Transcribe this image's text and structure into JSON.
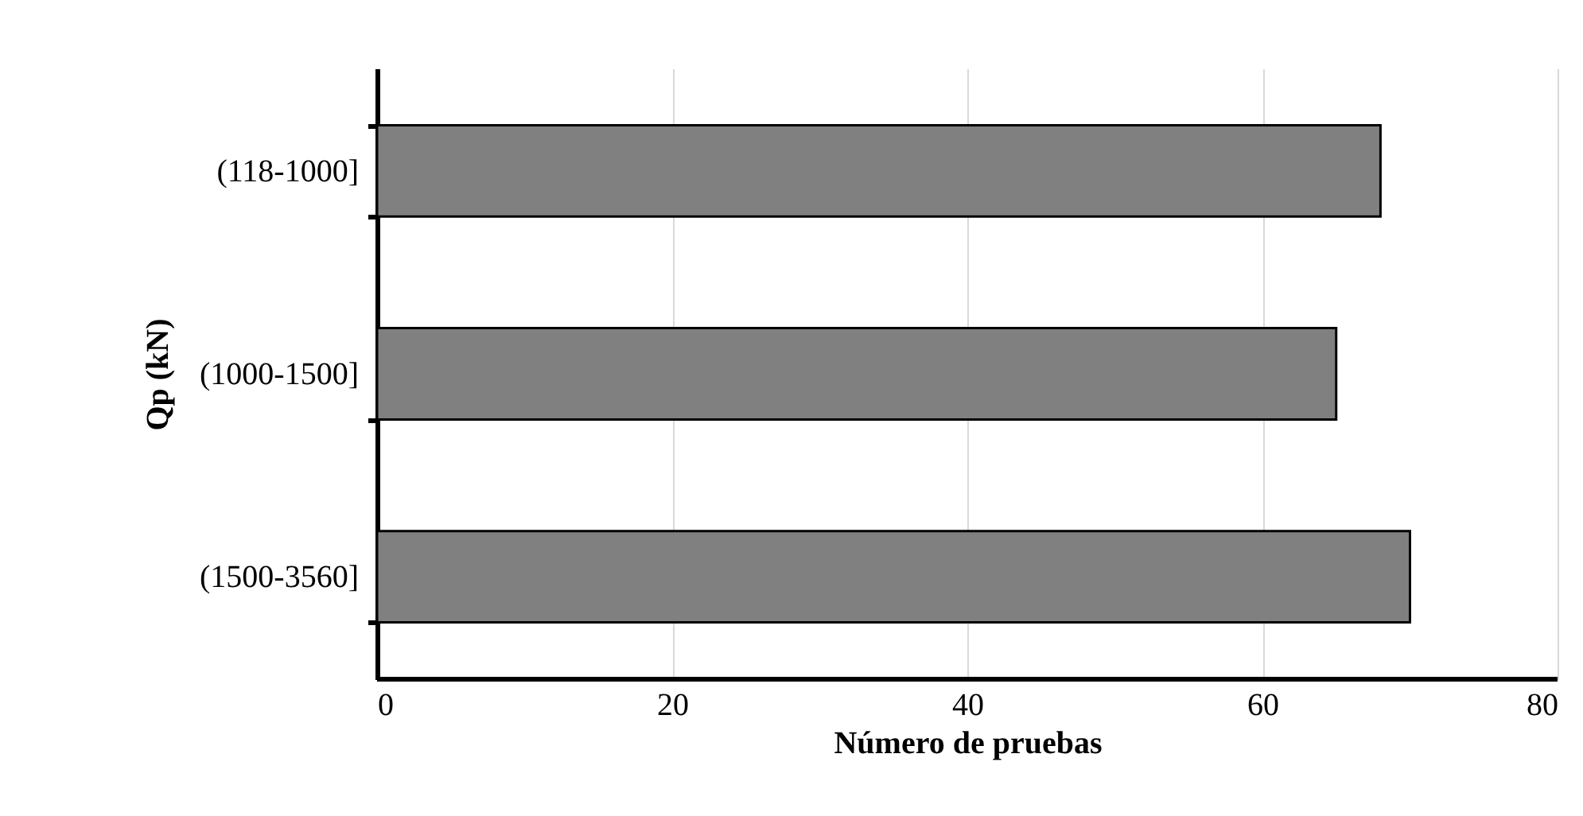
{
  "chart_data": {
    "type": "bar",
    "orientation": "horizontal",
    "xlabel": "Número de pruebas",
    "ylabel": "Qp (kN)",
    "categories": [
      "(118-1000]",
      "(1000-1500]",
      "(1500-3560]"
    ],
    "values": [
      68,
      65,
      70
    ],
    "color": "#808080",
    "xlim": [
      0,
      80
    ],
    "xticks": [
      0,
      20,
      40,
      60,
      80
    ],
    "grid": "x"
  }
}
